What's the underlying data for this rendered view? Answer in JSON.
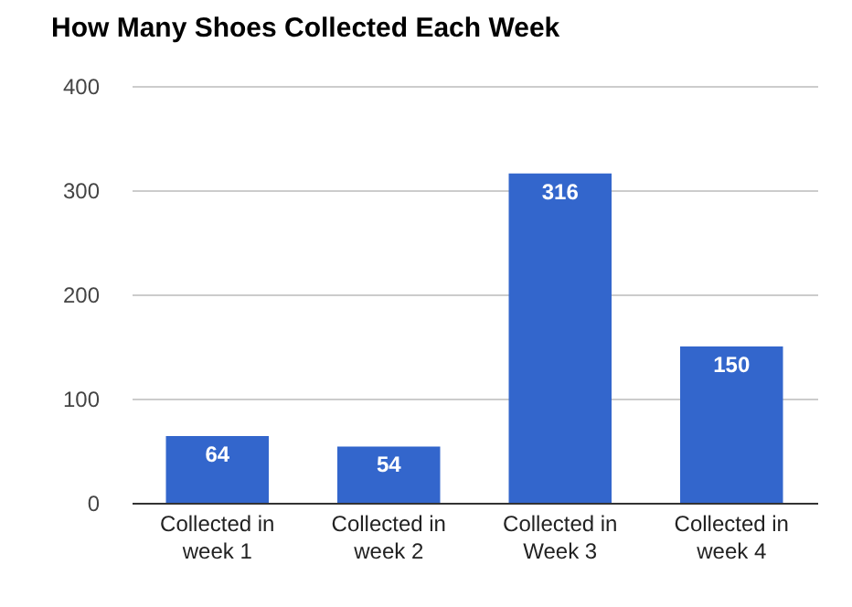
{
  "chart_data": {
    "type": "bar",
    "title": "How Many Shoes Collected Each Week",
    "categories": [
      "Collected in week 1",
      "Collected in week 2",
      "Collected in Week 3",
      "Collected in week 4"
    ],
    "values": [
      64,
      54,
      316,
      150
    ],
    "color": "#3366cc",
    "ylim": [
      0,
      400
    ],
    "yticks": [
      0,
      100,
      200,
      300,
      400
    ],
    "grid": true,
    "data_labels": true
  }
}
